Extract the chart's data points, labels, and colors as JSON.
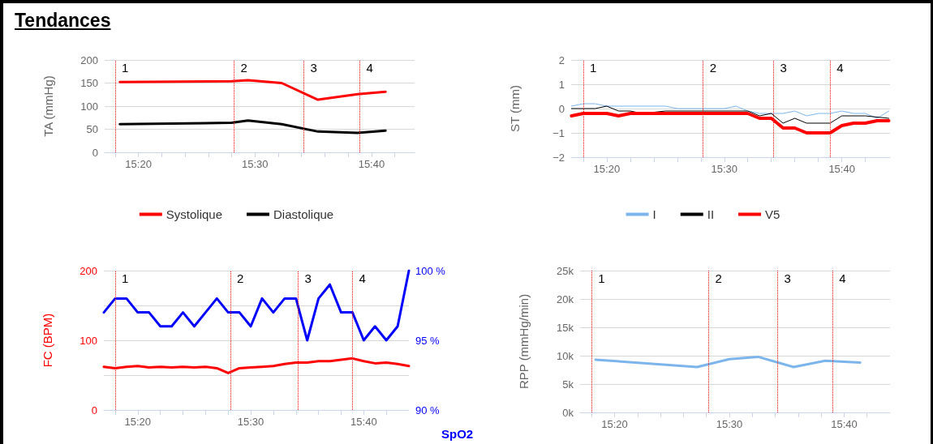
{
  "chart_data": [
    {
      "type": "line",
      "title": "Tendances",
      "ylabel": "TA (mmHg)",
      "legend": "bottom",
      "grid": "y",
      "marker": "none",
      "line_style": "solid",
      "xlim": [
        15.285,
        15.7283
      ],
      "xticks": [
        {
          "value": 15.3,
          "label": null
        },
        {
          "value": 15.3333,
          "label": "15:20"
        },
        {
          "value": 15.3667,
          "label": null
        },
        {
          "value": 15.4,
          "label": null
        },
        {
          "value": 15.4333,
          "label": null
        },
        {
          "value": 15.4667,
          "label": null
        },
        {
          "value": 15.5,
          "label": "15:30"
        },
        {
          "value": 15.5333,
          "label": null
        },
        {
          "value": 15.5667,
          "label": null
        },
        {
          "value": 15.6,
          "label": null
        },
        {
          "value": 15.6333,
          "label": null
        },
        {
          "value": 15.6667,
          "label": "15:40"
        },
        {
          "value": 15.7,
          "label": null
        }
      ],
      "ylim": [
        0,
        200
      ],
      "yticks": [
        0,
        50,
        100,
        150,
        200
      ],
      "x": [
        15.3067,
        15.4667,
        15.49,
        15.5383,
        15.59,
        15.6467,
        15.6867
      ],
      "series": [
        {
          "name": "Systolique",
          "color": "#ff0000",
          "values": [
            152,
            154,
            156,
            150,
            114,
            126,
            131
          ]
        },
        {
          "name": "Diastolique",
          "color": "#000000",
          "values": [
            61,
            64,
            69,
            61,
            45,
            42,
            47
          ]
        }
      ],
      "ref_lines": [
        {
          "axis": "x",
          "value": 15.3,
          "color": "#ff0000",
          "line_style": "dotted"
        },
        {
          "axis": "x",
          "value": 15.47,
          "color": "#ff0000",
          "line_style": "dotted"
        },
        {
          "axis": "x",
          "value": 15.57,
          "color": "#ff0000",
          "line_style": "dotted"
        },
        {
          "axis": "x",
          "value": 15.65,
          "color": "#ff0000",
          "line_style": "dotted"
        }
      ],
      "annotations": [
        {
          "text": "1",
          "x": 15.3,
          "y": 200
        },
        {
          "text": "2",
          "x": 15.47,
          "y": 200
        },
        {
          "text": "3",
          "x": 15.57,
          "y": 200
        },
        {
          "text": "4",
          "x": 15.65,
          "y": 200
        }
      ]
    },
    {
      "type": "line",
      "ylabel": "ST (mm)",
      "legend": "bottom",
      "grid": "y",
      "marker": "none",
      "line_style": "solid",
      "xlim": [
        15.2828,
        15.735
      ],
      "xticks": [
        {
          "value": 15.3,
          "label": null
        },
        {
          "value": 15.3333,
          "label": "15:20"
        },
        {
          "value": 15.3667,
          "label": null
        },
        {
          "value": 15.4,
          "label": null
        },
        {
          "value": 15.4333,
          "label": null
        },
        {
          "value": 15.4667,
          "label": null
        },
        {
          "value": 15.5,
          "label": "15:30"
        },
        {
          "value": 15.5333,
          "label": null
        },
        {
          "value": 15.5667,
          "label": null
        },
        {
          "value": 15.6,
          "label": null
        },
        {
          "value": 15.6333,
          "label": null
        },
        {
          "value": 15.6667,
          "label": "15:40"
        },
        {
          "value": 15.7,
          "label": null
        }
      ],
      "ylim": [
        -2,
        2
      ],
      "yticks": [
        {
          "value": -2,
          "label": "−2"
        },
        {
          "value": -1,
          "label": "−1"
        },
        0,
        1,
        2
      ],
      "series": [
        {
          "name": "I",
          "color": "#7cb5ec",
          "x": [
            15.2833,
            15.3,
            15.3167,
            15.3333,
            15.4167,
            15.4333,
            15.5,
            15.5167,
            15.5333,
            15.55,
            15.5833,
            15.6,
            15.6167,
            15.6333,
            15.65,
            15.6667,
            15.6833,
            15.7,
            15.7167,
            15.7333
          ],
          "values": [
            0.1,
            0.2,
            0.2,
            0.1,
            0.1,
            0,
            0,
            0.1,
            -0.1,
            -0.2,
            -0.2,
            -0.1,
            -0.3,
            -0.2,
            -0.2,
            -0.1,
            -0.2,
            -0.2,
            -0.4,
            -0.1
          ]
        },
        {
          "name": "II",
          "color": "#000000",
          "x": [
            15.2833,
            15.3167,
            15.3333,
            15.35,
            15.3667,
            15.3833,
            15.4167,
            15.5333,
            15.55,
            15.5667,
            15.5833,
            15.6,
            15.6167,
            15.65,
            15.6667,
            15.7,
            15.7333
          ],
          "values": [
            0,
            0,
            0.1,
            -0.1,
            -0.1,
            -0.2,
            -0.1,
            -0.1,
            -0.3,
            -0.2,
            -0.6,
            -0.4,
            -0.6,
            -0.6,
            -0.3,
            -0.3,
            -0.4
          ]
        },
        {
          "name": "V5",
          "color": "#ff0000",
          "x": [
            15.2833,
            15.3,
            15.3333,
            15.35,
            15.3667,
            15.5333,
            15.55,
            15.5667,
            15.5833,
            15.6,
            15.6167,
            15.65,
            15.6667,
            15.6833,
            15.7,
            15.7167,
            15.7333
          ],
          "values": [
            -0.3,
            -0.2,
            -0.2,
            -0.3,
            -0.2,
            -0.2,
            -0.4,
            -0.4,
            -0.8,
            -0.8,
            -1.0,
            -1.0,
            -0.7,
            -0.6,
            -0.6,
            -0.5,
            -0.5
          ]
        }
      ],
      "ref_lines": [
        {
          "axis": "x",
          "value": 15.3,
          "color": "#ff0000",
          "line_style": "dotted"
        },
        {
          "axis": "x",
          "value": 15.47,
          "color": "#ff0000",
          "line_style": "dotted"
        },
        {
          "axis": "x",
          "value": 15.57,
          "color": "#ff0000",
          "line_style": "dotted"
        },
        {
          "axis": "x",
          "value": 15.65,
          "color": "#ff0000",
          "line_style": "dotted"
        }
      ],
      "annotations": [
        {
          "text": "1",
          "x": 15.3,
          "y": 2
        },
        {
          "text": "2",
          "x": 15.47,
          "y": 2
        },
        {
          "text": "3",
          "x": 15.57,
          "y": 2
        },
        {
          "text": "4",
          "x": 15.65,
          "y": 2
        }
      ]
    },
    {
      "type": "line",
      "ylabel": "FC (BPM)",
      "y2label": "SpO2",
      "legend": false,
      "grid": "y",
      "marker": "none",
      "line_style": "solid",
      "xlim": [
        15.2833,
        15.7333
      ],
      "xticks": [
        {
          "value": 15.3,
          "label": null
        },
        {
          "value": 15.3333,
          "label": "15:20"
        },
        {
          "value": 15.3667,
          "label": null
        },
        {
          "value": 15.4,
          "label": null
        },
        {
          "value": 15.4333,
          "label": null
        },
        {
          "value": 15.4667,
          "label": null
        },
        {
          "value": 15.5,
          "label": "15:30"
        },
        {
          "value": 15.5333,
          "label": null
        },
        {
          "value": 15.5667,
          "label": null
        },
        {
          "value": 15.6,
          "label": null
        },
        {
          "value": 15.6333,
          "label": null
        },
        {
          "value": 15.6667,
          "label": "15:40"
        },
        {
          "value": 15.7,
          "label": null
        }
      ],
      "ylim": [
        0,
        200
      ],
      "yticks": [
        0,
        {
          "value": 50,
          "label": null
        },
        100,
        {
          "value": 150,
          "label": null
        },
        200
      ],
      "y2lim": [
        90,
        100
      ],
      "y2ticks": [
        {
          "value": 90,
          "label": "90 %"
        },
        {
          "value": 95,
          "label": "95 %"
        },
        {
          "value": 100,
          "label": "100 %"
        }
      ],
      "x": [
        15.2833,
        15.3,
        15.3167,
        15.3333,
        15.35,
        15.3667,
        15.3833,
        15.4,
        15.4167,
        15.4333,
        15.45,
        15.4667,
        15.4833,
        15.5,
        15.5167,
        15.5333,
        15.55,
        15.5667,
        15.5833,
        15.6,
        15.6167,
        15.6333,
        15.65,
        15.6667,
        15.6833,
        15.7,
        15.7167,
        15.7333
      ],
      "series": [
        {
          "color": "#ff0000",
          "values": [
            62,
            60,
            62,
            63,
            61,
            62,
            61,
            62,
            61,
            62,
            60,
            53,
            60,
            61,
            62,
            63,
            66,
            68,
            68,
            70,
            70,
            72,
            74,
            70,
            67,
            68,
            66,
            63
          ]
        },
        {
          "color": "#0000ff",
          "axis": "y2",
          "values": [
            97,
            98,
            98,
            97,
            97,
            96,
            96,
            97,
            96,
            97,
            98,
            97,
            97,
            96,
            98,
            97,
            98,
            98,
            95,
            98,
            99,
            97,
            97,
            95,
            96,
            95,
            96,
            100
          ]
        }
      ],
      "ref_lines": [
        {
          "axis": "x",
          "value": 15.3,
          "color": "#ff0000",
          "line_style": "dotted"
        },
        {
          "axis": "x",
          "value": 15.47,
          "color": "#ff0000",
          "line_style": "dotted"
        },
        {
          "axis": "x",
          "value": 15.57,
          "color": "#ff0000",
          "line_style": "dotted"
        },
        {
          "axis": "x",
          "value": 15.65,
          "color": "#ff0000",
          "line_style": "dotted"
        }
      ],
      "annotations": [
        {
          "text": "1",
          "x": 15.3,
          "y": 200
        },
        {
          "text": "2",
          "x": 15.47,
          "y": 200
        },
        {
          "text": "3",
          "x": 15.57,
          "y": 200
        },
        {
          "text": "4",
          "x": 15.65,
          "y": 200
        }
      ]
    },
    {
      "type": "line",
      "ylabel": "RPP (mmHg/min)",
      "legend": false,
      "grid": "y",
      "marker": "none",
      "line_style": "solid",
      "xlim": [
        15.2833,
        15.7333
      ],
      "xticks": [
        {
          "value": 15.3,
          "label": null
        },
        {
          "value": 15.3333,
          "label": "15:20"
        },
        {
          "value": 15.3667,
          "label": null
        },
        {
          "value": 15.4,
          "label": null
        },
        {
          "value": 15.4333,
          "label": null
        },
        {
          "value": 15.4667,
          "label": null
        },
        {
          "value": 15.5,
          "label": "15:30"
        },
        {
          "value": 15.5333,
          "label": null
        },
        {
          "value": 15.5667,
          "label": null
        },
        {
          "value": 15.6,
          "label": null
        },
        {
          "value": 15.6333,
          "label": null
        },
        {
          "value": 15.6667,
          "label": "15:40"
        },
        {
          "value": 15.7,
          "label": null
        }
      ],
      "ylim": [
        0,
        25000
      ],
      "yticks": [
        {
          "value": 0,
          "label": "0k"
        },
        {
          "value": 5000,
          "label": "5k"
        },
        {
          "value": 10000,
          "label": "10k"
        },
        {
          "value": 15000,
          "label": "15k"
        },
        {
          "value": 20000,
          "label": "20k"
        },
        {
          "value": 25000,
          "label": "25k"
        }
      ],
      "x": [
        15.3058,
        15.4533,
        15.5,
        15.5417,
        15.5933,
        15.6392,
        15.69
      ],
      "series": [
        {
          "color": "#7cb5ec",
          "values": [
            9300,
            8000,
            9400,
            9800,
            8000,
            9100,
            8800
          ]
        }
      ],
      "ref_lines": [
        {
          "axis": "x",
          "value": 15.3,
          "color": "#ff0000",
          "line_style": "dotted"
        },
        {
          "axis": "x",
          "value": 15.47,
          "color": "#ff0000",
          "line_style": "dotted"
        },
        {
          "axis": "x",
          "value": 15.57,
          "color": "#ff0000",
          "line_style": "dotted"
        },
        {
          "axis": "x",
          "value": 15.65,
          "color": "#ff0000",
          "line_style": "dotted"
        }
      ],
      "annotations": [
        {
          "text": "1",
          "x": 15.3,
          "y": 25000
        },
        {
          "text": "2",
          "x": 15.47,
          "y": 25000
        },
        {
          "text": "3",
          "x": 15.57,
          "y": 25000
        },
        {
          "text": "4",
          "x": 15.65,
          "y": 25000
        }
      ]
    }
  ]
}
